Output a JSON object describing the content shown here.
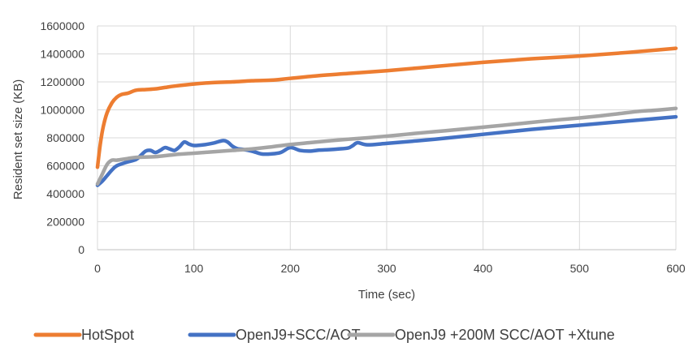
{
  "chart_data": {
    "type": "line",
    "title": "",
    "xlabel": "Time (sec)",
    "ylabel": "Resident set size (KB)",
    "xlim": [
      0,
      600
    ],
    "ylim": [
      0,
      1600000
    ],
    "xticks": [
      0,
      100,
      200,
      300,
      400,
      500,
      600
    ],
    "yticks": [
      0,
      200000,
      400000,
      600000,
      800000,
      1000000,
      1200000,
      1400000,
      1600000
    ],
    "grid": true,
    "legend_position": "bottom",
    "series": [
      {
        "name": "HotSpot",
        "color": "#ED7D31",
        "points": [
          [
            0,
            590000
          ],
          [
            3,
            760000
          ],
          [
            6,
            880000
          ],
          [
            10,
            980000
          ],
          [
            15,
            1050000
          ],
          [
            20,
            1090000
          ],
          [
            25,
            1110000
          ],
          [
            32,
            1120000
          ],
          [
            40,
            1140000
          ],
          [
            50,
            1145000
          ],
          [
            60,
            1150000
          ],
          [
            70,
            1160000
          ],
          [
            80,
            1170000
          ],
          [
            100,
            1185000
          ],
          [
            120,
            1195000
          ],
          [
            140,
            1200000
          ],
          [
            160,
            1208000
          ],
          [
            180,
            1212000
          ],
          [
            200,
            1225000
          ],
          [
            230,
            1245000
          ],
          [
            260,
            1260000
          ],
          [
            300,
            1280000
          ],
          [
            350,
            1310000
          ],
          [
            400,
            1340000
          ],
          [
            450,
            1365000
          ],
          [
            500,
            1385000
          ],
          [
            550,
            1410000
          ],
          [
            600,
            1440000
          ]
        ]
      },
      {
        "name": "OpenJ9+SCC/AOT",
        "color": "#4472C4",
        "points": [
          [
            0,
            460000
          ],
          [
            5,
            490000
          ],
          [
            10,
            530000
          ],
          [
            15,
            570000
          ],
          [
            20,
            600000
          ],
          [
            30,
            625000
          ],
          [
            40,
            645000
          ],
          [
            45,
            675000
          ],
          [
            50,
            705000
          ],
          [
            55,
            710000
          ],
          [
            60,
            695000
          ],
          [
            65,
            710000
          ],
          [
            70,
            730000
          ],
          [
            75,
            720000
          ],
          [
            80,
            710000
          ],
          [
            85,
            735000
          ],
          [
            90,
            770000
          ],
          [
            95,
            755000
          ],
          [
            100,
            745000
          ],
          [
            110,
            750000
          ],
          [
            120,
            762000
          ],
          [
            130,
            780000
          ],
          [
            135,
            770000
          ],
          [
            140,
            740000
          ],
          [
            145,
            722000
          ],
          [
            150,
            718000
          ],
          [
            160,
            705000
          ],
          [
            170,
            685000
          ],
          [
            180,
            685000
          ],
          [
            190,
            695000
          ],
          [
            200,
            730000
          ],
          [
            210,
            710000
          ],
          [
            220,
            705000
          ],
          [
            230,
            712000
          ],
          [
            240,
            715000
          ],
          [
            250,
            720000
          ],
          [
            260,
            727000
          ],
          [
            265,
            745000
          ],
          [
            270,
            765000
          ],
          [
            280,
            750000
          ],
          [
            300,
            760000
          ],
          [
            350,
            790000
          ],
          [
            400,
            825000
          ],
          [
            450,
            860000
          ],
          [
            500,
            890000
          ],
          [
            550,
            920000
          ],
          [
            600,
            950000
          ]
        ]
      },
      {
        "name": "OpenJ9 +200M SCC/AOT +Xtune",
        "color": "#A5A5A5",
        "points": [
          [
            0,
            470000
          ],
          [
            5,
            540000
          ],
          [
            10,
            610000
          ],
          [
            15,
            640000
          ],
          [
            20,
            640000
          ],
          [
            30,
            650000
          ],
          [
            40,
            660000
          ],
          [
            60,
            665000
          ],
          [
            80,
            680000
          ],
          [
            100,
            690000
          ],
          [
            120,
            700000
          ],
          [
            140,
            710000
          ],
          [
            160,
            720000
          ],
          [
            180,
            735000
          ],
          [
            200,
            752000
          ],
          [
            220,
            765000
          ],
          [
            240,
            778000
          ],
          [
            260,
            790000
          ],
          [
            280,
            800000
          ],
          [
            300,
            812000
          ],
          [
            320,
            825000
          ],
          [
            340,
            838000
          ],
          [
            360,
            850000
          ],
          [
            380,
            863000
          ],
          [
            400,
            876000
          ],
          [
            420,
            889000
          ],
          [
            440,
            903000
          ],
          [
            460,
            917000
          ],
          [
            480,
            930000
          ],
          [
            500,
            942000
          ],
          [
            520,
            956000
          ],
          [
            540,
            972000
          ],
          [
            560,
            988000
          ],
          [
            580,
            998000
          ],
          [
            600,
            1010000
          ]
        ]
      }
    ]
  }
}
